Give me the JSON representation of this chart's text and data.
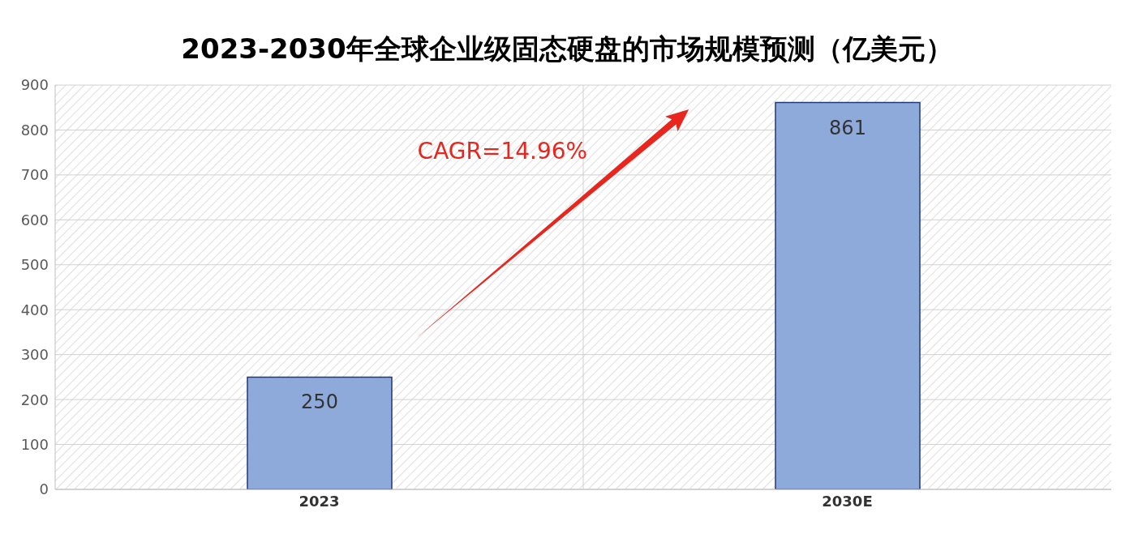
{
  "chart_data": {
    "type": "bar",
    "title": "2023-2030年全球企业级固态硬盘的市场规模预测（亿美元）",
    "categories": [
      "2023",
      "2030E"
    ],
    "values": [
      250,
      861
    ],
    "color": "#8eaadb",
    "ylim": [
      0,
      900
    ],
    "yticks": [
      0,
      100,
      200,
      300,
      400,
      500,
      600,
      700,
      800,
      900
    ],
    "grid": true,
    "data_labels": true,
    "annotations": [
      "CAGR=14.96%"
    ]
  }
}
